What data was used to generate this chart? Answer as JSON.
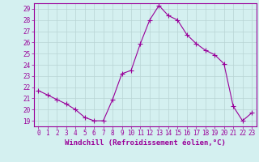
{
  "x": [
    0,
    1,
    2,
    3,
    4,
    5,
    6,
    7,
    8,
    9,
    10,
    11,
    12,
    13,
    14,
    15,
    16,
    17,
    18,
    19,
    20,
    21,
    22,
    23
  ],
  "y": [
    21.7,
    21.3,
    20.9,
    20.5,
    20.0,
    19.3,
    19.0,
    19.0,
    20.9,
    23.2,
    23.5,
    25.9,
    28.0,
    29.3,
    28.4,
    28.0,
    26.7,
    25.9,
    25.3,
    24.9,
    24.1,
    20.3,
    19.0,
    19.7
  ],
  "line_color": "#990099",
  "marker": "D",
  "marker_size": 2,
  "bg_color": "#d4f0f0",
  "grid_color": "#b8d4d4",
  "xlabel": "Windchill (Refroidissement éolien,°C)",
  "xlim": [
    -0.5,
    23.5
  ],
  "ylim": [
    18.5,
    29.5
  ],
  "yticks": [
    19,
    20,
    21,
    22,
    23,
    24,
    25,
    26,
    27,
    28,
    29
  ],
  "xticks": [
    0,
    1,
    2,
    3,
    4,
    5,
    6,
    7,
    8,
    9,
    10,
    11,
    12,
    13,
    14,
    15,
    16,
    17,
    18,
    19,
    20,
    21,
    22,
    23
  ],
  "tick_fontsize": 5.5,
  "xlabel_fontsize": 6.5,
  "spine_color": "#990099",
  "axis_label_color": "#990099",
  "tick_color": "#990099"
}
